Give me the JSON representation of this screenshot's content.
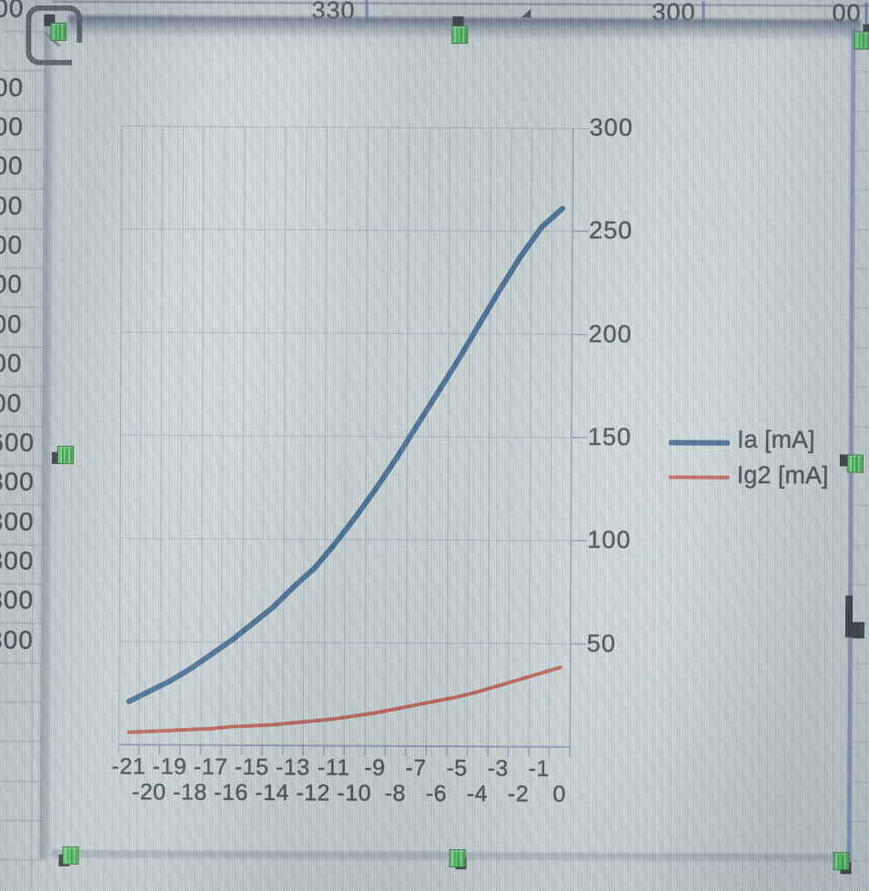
{
  "sheet": {
    "left_column_cells": [
      "00",
      "",
      "00",
      "00",
      "00",
      "00",
      "00",
      "00",
      "00",
      "00",
      "00",
      "600",
      "300",
      "300",
      "300",
      "300",
      "300"
    ],
    "top_row_fragments": [
      {
        "text": "330"
      },
      {
        "text": "300"
      },
      {
        "text": "00"
      }
    ]
  },
  "chart_data": {
    "type": "line",
    "title": "",
    "categories": [
      -21,
      -20,
      -19,
      -18,
      -17,
      -16,
      -15,
      -14,
      -13,
      -12,
      -11,
      -10,
      -9,
      -8,
      -7,
      -6,
      -5,
      -4,
      -3,
      -2,
      -1,
      0
    ],
    "series": [
      {
        "name": "Ia [mA]",
        "color": "#1d4e7e",
        "width": 6,
        "values": [
          21,
          26,
          31,
          37,
          44,
          51,
          59,
          67,
          77,
          86,
          98,
          111,
          125,
          140,
          156,
          172,
          188,
          205,
          222,
          238,
          252,
          261
        ]
      },
      {
        "name": "Ig2 [mA]",
        "color": "#c04532",
        "width": 4,
        "values": [
          6,
          6.5,
          7,
          7.5,
          8,
          9,
          9.5,
          10,
          11,
          12,
          13,
          14.5,
          16,
          18,
          20,
          22,
          24,
          26.5,
          29.5,
          32.5,
          35.5,
          38.5
        ]
      }
    ],
    "xlabel": "",
    "ylabel": "",
    "ylim": [
      0,
      300
    ],
    "yticks": [
      50,
      100,
      150,
      200,
      250,
      300
    ],
    "x_tick_layout": "staggered-two-rows",
    "grid": true,
    "legend_position": "right"
  },
  "colors": {
    "series_ia": "#1d4e7e",
    "series_ig2": "#c04532",
    "gridline": "#9db3c4",
    "plot_border": "#8ba2b6",
    "selection_handle_green": "#2ec43a",
    "axis_text": "#23262c"
  },
  "selection": {
    "object_selected": true,
    "handle_count": 8
  }
}
